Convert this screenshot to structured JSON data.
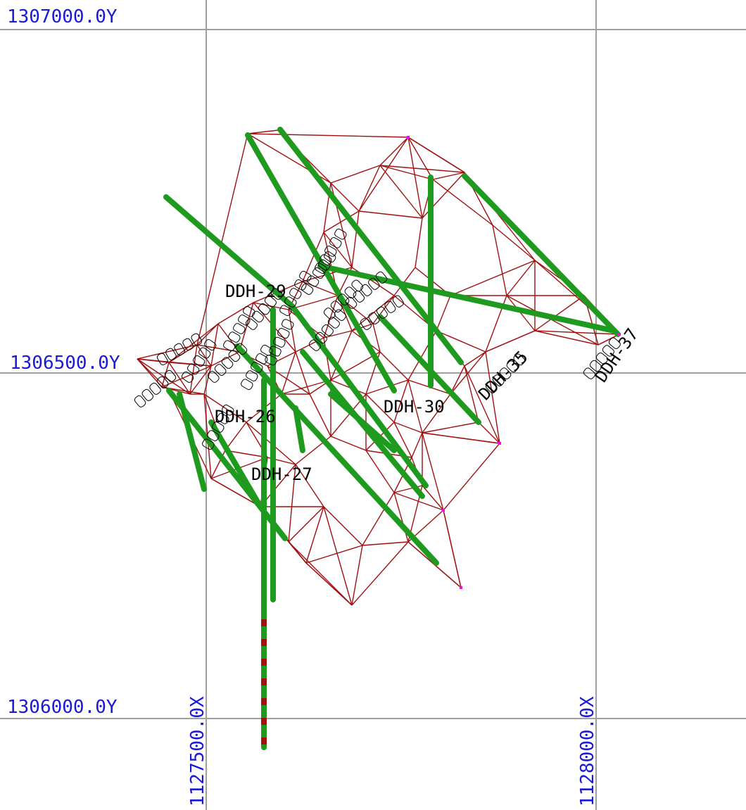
{
  "map": {
    "grid_labels": {
      "y_top": "1307000.0Y",
      "y_mid": "1306500.0Y",
      "y_bottom": "1306000.0Y",
      "x_left": "1127500.0X",
      "x_right": "1128000.0X"
    },
    "drillhole_labels": {
      "ddh_29": "DDH-29",
      "ddh_26": "DDH-26",
      "ddh_27": "DDH-27",
      "ddh_30": "DDH-30",
      "ddh_37": "DDH-37",
      "ddh_35": "DDH-35"
    },
    "colors": {
      "grid": "#a0a0a0",
      "grid_label": "#1a1ad6",
      "mesh": "#a01010",
      "drillhole": "#1e9a1e",
      "vertex": "#ff00ff",
      "label": "#000000"
    }
  }
}
